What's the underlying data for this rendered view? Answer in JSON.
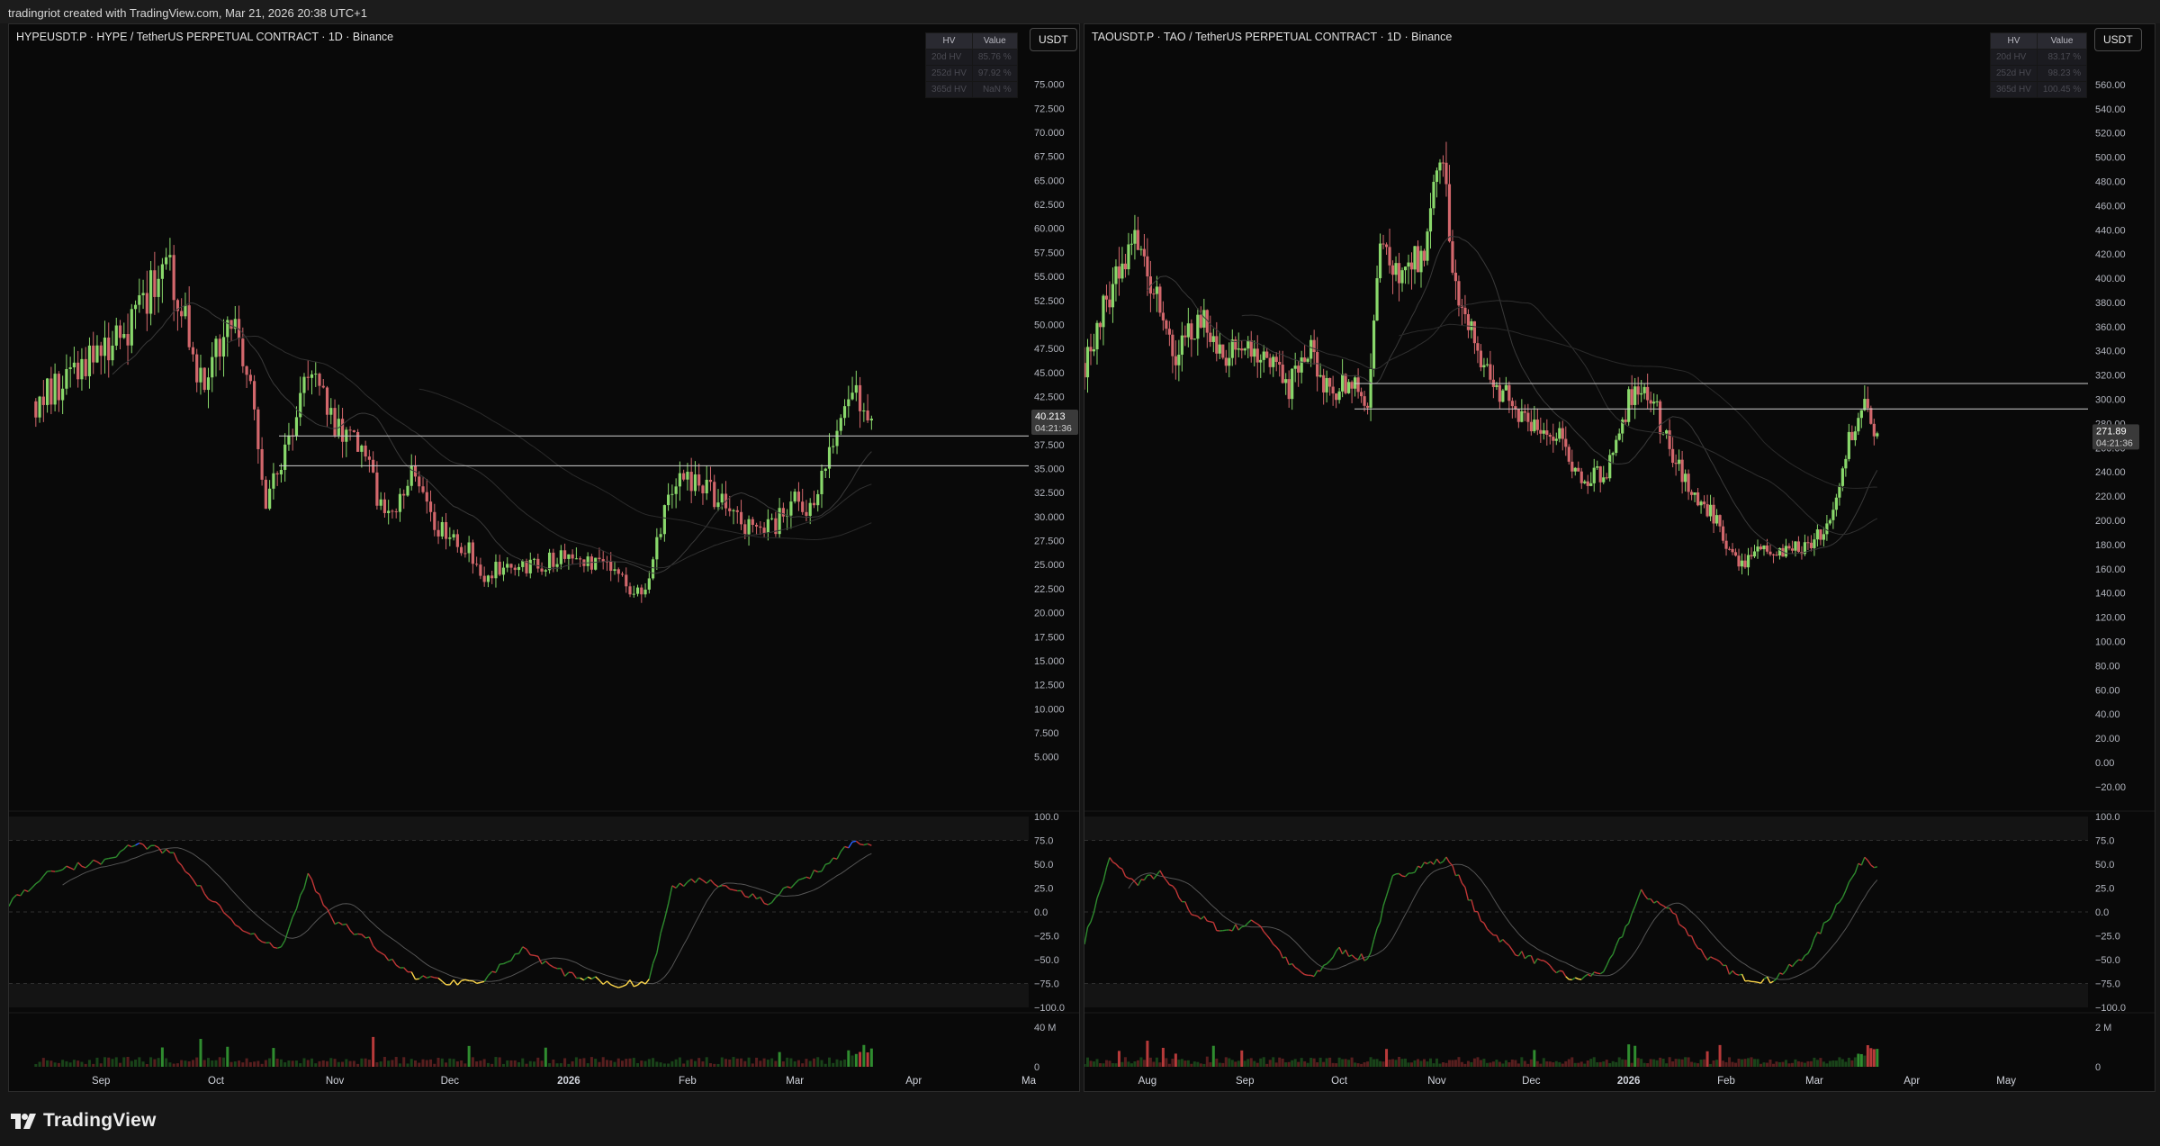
{
  "header": {
    "credit": "tradingriot created with TradingView.com, Mar 21, 2026 20:38 UTC+1"
  },
  "footer": {
    "brand": "TradingView"
  },
  "colors": {
    "up": "#89d86b",
    "down": "#d2676c",
    "volume_up": "#2f8c2f",
    "volume_down": "#b73a3a",
    "osc_overbought": "#2962ff",
    "osc_oversold": "#ffd84a",
    "osc_bull": "#2e8b2e",
    "osc_bear": "#c03636"
  },
  "panels": [
    {
      "id": "hype",
      "title": "HYPEUSDT.P · HYPE / TetherUS PERPETUAL CONTRACT · 1D · Binance",
      "currency_button": "USDT",
      "hv_table": {
        "headers": [
          "HV",
          "Value"
        ],
        "rows": [
          [
            "20d HV",
            "85.76 %"
          ],
          [
            "252d HV",
            "97.92 %"
          ],
          [
            "365d HV",
            "NaN %"
          ]
        ]
      },
      "last_price_label": "40.213",
      "countdown_label": "04:21:36",
      "x_labels": [
        "Sep",
        "Oct",
        "Nov",
        "Dec",
        "2026",
        "Feb",
        "Mar",
        "Apr",
        "Ma"
      ],
      "price_ticks": [
        "75.000",
        "72.500",
        "70.000",
        "67.500",
        "65.000",
        "62.500",
        "60.000",
        "57.500",
        "55.000",
        "52.500",
        "50.000",
        "47.500",
        "45.000",
        "42.500",
        "40.000",
        "37.500",
        "35.000",
        "32.500",
        "30.000",
        "27.500",
        "25.000",
        "22.500",
        "20.000",
        "17.500",
        "15.000",
        "12.500",
        "10.000",
        "7.500",
        "5.000"
      ],
      "osc_ticks": [
        "100.0",
        "75.0",
        "50.0",
        "25.0",
        "0.0",
        "−25.0",
        "−50.0",
        "−75.0",
        "−100.0"
      ],
      "vol_ticks": [
        "40 M",
        "0"
      ]
    },
    {
      "id": "tao",
      "title": "TAOUSDT.P · TAO / TetherUS PERPETUAL CONTRACT · 1D · Binance",
      "currency_button": "USDT",
      "hv_table": {
        "headers": [
          "HV",
          "Value"
        ],
        "rows": [
          [
            "20d HV",
            "83.17 %"
          ],
          [
            "252d HV",
            "98.23 %"
          ],
          [
            "365d HV",
            "100.45 %"
          ]
        ]
      },
      "last_price_label": "271.89",
      "countdown_label": "04:21:36",
      "x_labels": [
        "Aug",
        "Sep",
        "Oct",
        "Nov",
        "Dec",
        "2026",
        "Feb",
        "Mar",
        "Apr",
        "May"
      ],
      "price_ticks": [
        "560.00",
        "540.00",
        "520.00",
        "500.00",
        "480.00",
        "460.00",
        "440.00",
        "420.00",
        "400.00",
        "380.00",
        "360.00",
        "340.00",
        "320.00",
        "300.00",
        "280.00",
        "260.00",
        "240.00",
        "220.00",
        "200.00",
        "180.00",
        "160.00",
        "140.00",
        "120.00",
        "100.00",
        "80.00",
        "60.00",
        "40.00",
        "20.00",
        "0.00",
        "−20.00"
      ],
      "osc_ticks": [
        "100.0",
        "75.0",
        "50.0",
        "25.0",
        "0.0",
        "−25.0",
        "−50.0",
        "−75.0",
        "−100.0"
      ],
      "vol_ticks": [
        "2 M",
        "0"
      ]
    }
  ],
  "chart_data": [
    {
      "type": "line",
      "title": "HYPEUSDT.P · HYPE / TetherUS PERPETUAL CONTRACT · 1D · Binance",
      "note": "daily candlestick price chart; closes approximated at key points",
      "x": [
        "2025-08-15",
        "2025-08-25",
        "2025-09-05",
        "2025-09-12",
        "2025-09-18",
        "2025-09-23",
        "2025-09-27",
        "2025-10-05",
        "2025-10-10",
        "2025-10-14",
        "2025-10-20",
        "2025-10-24",
        "2025-10-30",
        "2025-11-03",
        "2025-11-08",
        "2025-11-14",
        "2025-11-21",
        "2025-11-28",
        "2025-12-05",
        "2025-12-10",
        "2025-12-18",
        "2025-12-25",
        "2026-01-01",
        "2026-01-10",
        "2026-01-18",
        "2026-01-22",
        "2026-01-26",
        "2026-01-30",
        "2026-02-05",
        "2026-02-12",
        "2026-02-19",
        "2026-02-24",
        "2026-02-28",
        "2026-03-05",
        "2026-03-11",
        "2026-03-14",
        "2026-03-17",
        "2026-03-21"
      ],
      "series": [
        {
          "values": [
            42,
            45,
            48,
            52,
            57,
            50,
            44,
            50,
            44,
            31,
            38,
            46,
            41,
            38,
            37,
            30,
            34,
            29,
            27,
            24,
            25,
            25,
            26,
            25,
            22,
            23,
            31,
            34,
            33,
            31,
            28,
            29,
            32,
            31,
            37,
            40,
            42,
            40.2
          ]
        }
      ],
      "ylim": [
        0,
        77.5
      ],
      "horizontal_levels": [
        38.4,
        35.3
      ]
    },
    {
      "type": "line",
      "title": "TAOUSDT.P · TAO / TetherUS PERPETUAL CONTRACT · 1D · Binance",
      "note": "daily candlestick price chart; closes approximated at key points",
      "x": [
        "2025-07-12",
        "2025-07-20",
        "2025-07-28",
        "2025-08-03",
        "2025-08-10",
        "2025-08-18",
        "2025-08-25",
        "2025-09-01",
        "2025-09-08",
        "2025-09-15",
        "2025-09-22",
        "2025-09-28",
        "2025-10-05",
        "2025-10-10",
        "2025-10-14",
        "2025-10-20",
        "2025-10-28",
        "2025-11-02",
        "2025-11-07",
        "2025-11-13",
        "2025-11-20",
        "2025-11-27",
        "2025-12-03",
        "2025-12-10",
        "2025-12-17",
        "2025-12-25",
        "2026-01-01",
        "2026-01-08",
        "2026-01-15",
        "2026-01-22",
        "2026-01-29",
        "2026-02-05",
        "2026-02-12",
        "2026-02-20",
        "2026-02-28",
        "2026-03-06",
        "2026-03-12",
        "2026-03-17",
        "2026-03-21"
      ],
      "series": [
        {
          "values": [
            330,
            390,
            430,
            395,
            340,
            370,
            330,
            350,
            335,
            310,
            340,
            300,
            320,
            290,
            430,
            400,
            420,
            510,
            390,
            350,
            310,
            290,
            280,
            270,
            230,
            240,
            300,
            305,
            250,
            220,
            200,
            160,
            180,
            175,
            180,
            200,
            270,
            290,
            271.89
          ]
        }
      ],
      "ylim": [
        -35,
        580
      ],
      "horizontal_levels": [
        313,
        292
      ]
    }
  ]
}
